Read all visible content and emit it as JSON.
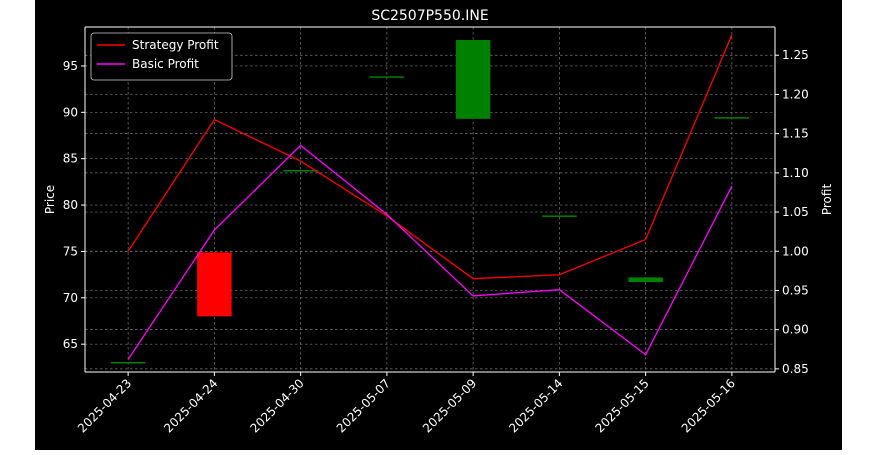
{
  "chart_data": {
    "type": "candlestick+line",
    "title": "SC2507P550.INE",
    "categories": [
      "2025-04-23",
      "2025-04-24",
      "2025-04-30",
      "2025-05-07",
      "2025-05-09",
      "2025-05-14",
      "2025-05-15",
      "2025-05-16"
    ],
    "ylabel_left": "Price",
    "ylabel_right": "Profit",
    "ylim_left": [
      62.0,
      99.2
    ],
    "ylim_right": [
      0.846,
      1.286
    ],
    "yticks_left": [
      65,
      70,
      75,
      80,
      85,
      90,
      95
    ],
    "yticks_right": [
      0.85,
      0.9,
      0.95,
      1.0,
      1.05,
      1.1,
      1.15,
      1.2,
      1.25
    ],
    "ytick_labels_right": [
      "0.85",
      "0.90",
      "0.95",
      "1.00",
      "1.05",
      "1.10",
      "1.15",
      "1.20",
      "1.25"
    ],
    "grid": true,
    "legend_position": "top-left",
    "colors": {
      "background": "#000000",
      "up": "#008000",
      "down": "#ff0000",
      "strategy": "#ff0000",
      "basic": "#ff00ff",
      "grid": "#7a7a7a",
      "text": "#ffffff"
    },
    "candles": [
      {
        "date": "2025-04-23",
        "open": 63.0,
        "close": 63.0
      },
      {
        "date": "2025-04-24",
        "open": 74.9,
        "close": 68.0
      },
      {
        "date": "2025-04-30",
        "open": 83.7,
        "close": 83.7
      },
      {
        "date": "2025-05-07",
        "open": 93.8,
        "close": 93.8
      },
      {
        "date": "2025-05-09",
        "open": 89.3,
        "close": 97.8
      },
      {
        "date": "2025-05-14",
        "open": 78.8,
        "close": 78.8
      },
      {
        "date": "2025-05-15",
        "open": 71.7,
        "close": 72.2
      },
      {
        "date": "2025-05-16",
        "open": 89.4,
        "close": 89.4
      }
    ],
    "series": [
      {
        "name": "Strategy Profit",
        "axis": "right",
        "color": "#ff0000",
        "values": [
          1.0,
          1.168,
          1.115,
          1.045,
          0.965,
          0.97,
          1.015,
          1.276
        ]
      },
      {
        "name": "Basic Profit",
        "axis": "right",
        "color": "#ff00ff",
        "values": [
          0.862,
          1.027,
          1.135,
          1.047,
          0.943,
          0.951,
          0.868,
          1.083
        ]
      }
    ]
  }
}
